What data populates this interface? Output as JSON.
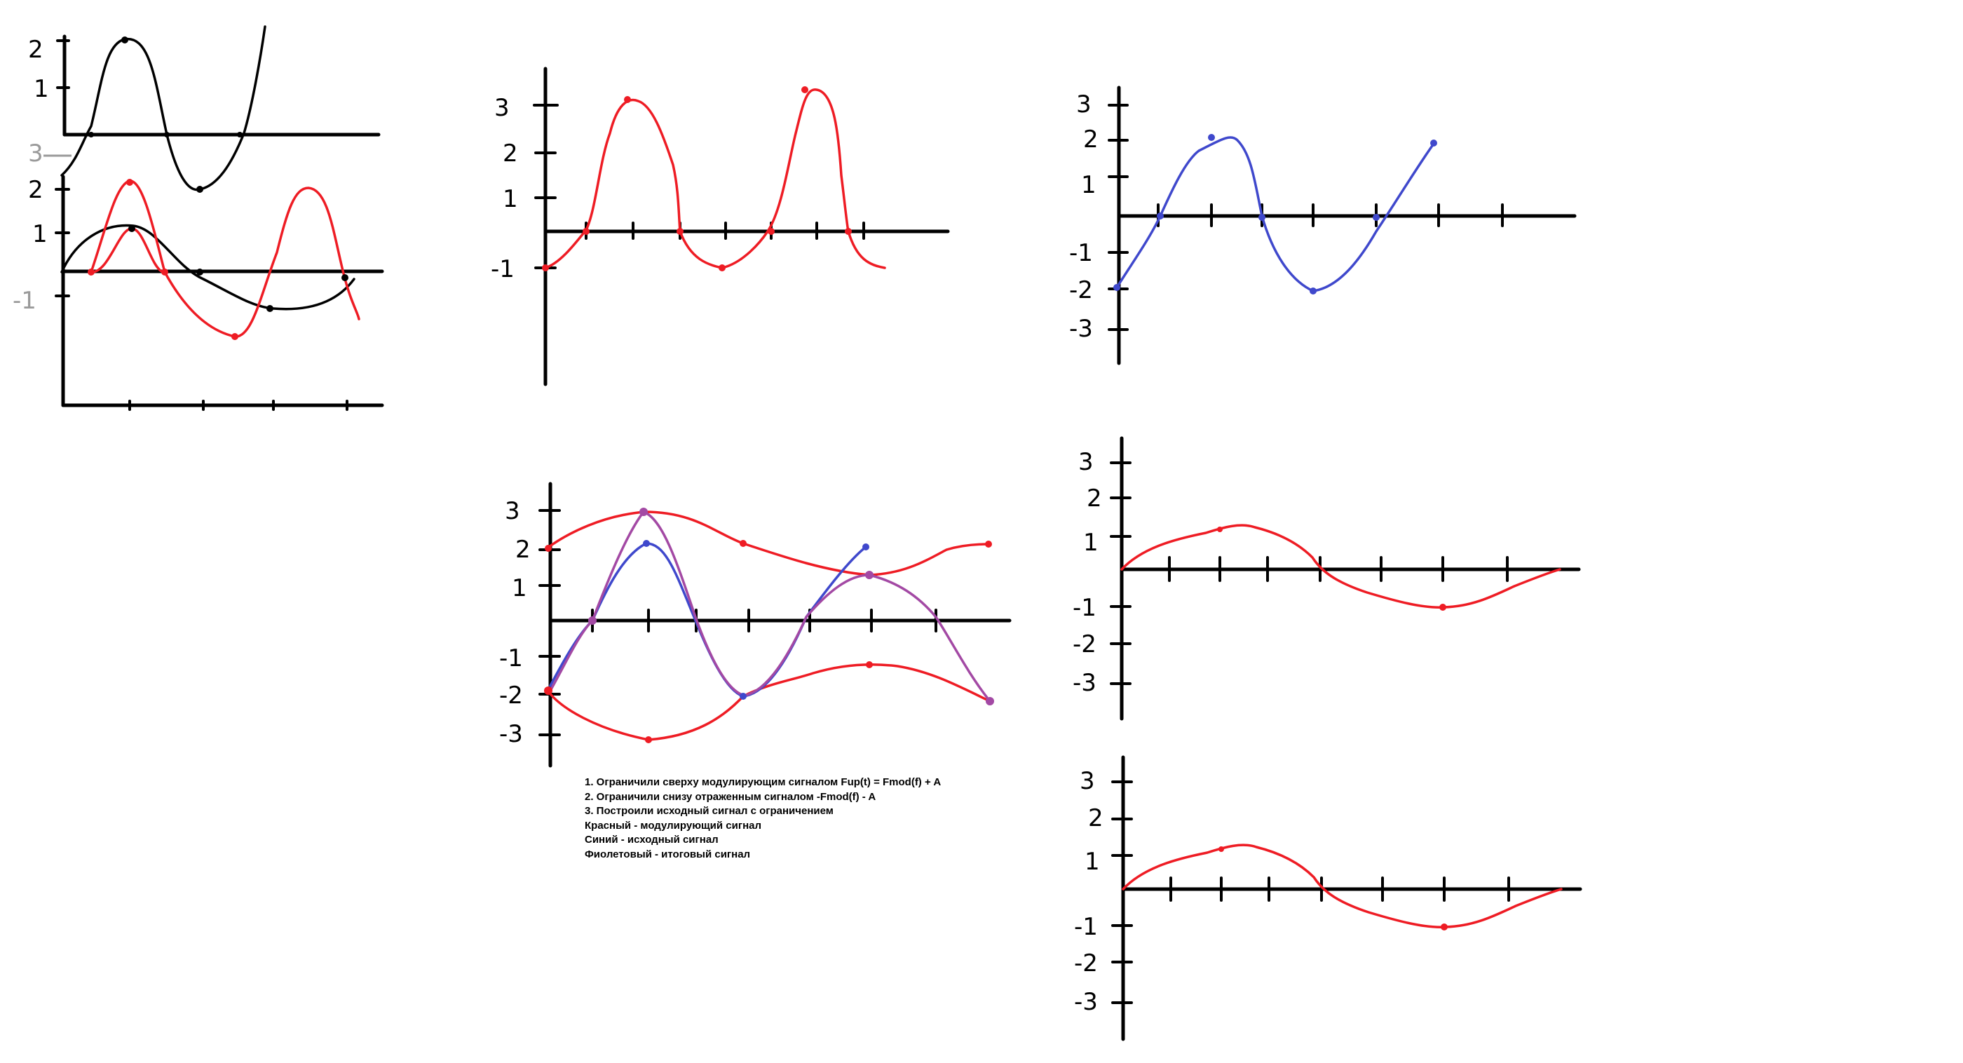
{
  "colors": {
    "black": "#000000",
    "red": "#ee1c24",
    "blue": "#3f48cc",
    "purple": "#a349a4"
  },
  "notes": [
    "1. Ограничили сверху модулирующим сигналом Fup(t) = Fmod(f) + A",
    "2. Ограничили снизу отраженным сигналом -Fmod(f) - A",
    "3. Построили исходный сигнал с ограничением",
    "Красный - модулирующий сигнал",
    "Синий - исходный сигнал",
    "Фиолетовый - итоговый сигнал"
  ],
  "sketches": {
    "top_left_a": {
      "labels": [
        "2",
        "1",
        "3"
      ]
    },
    "top_left_b": {
      "labels": [
        "2",
        "1",
        "-1"
      ]
    },
    "top_middle": {
      "labels": [
        "3",
        "2",
        "1",
        "-1"
      ]
    },
    "top_right": {
      "labels": [
        "3",
        "2",
        "1",
        "-1",
        "-2",
        "-3"
      ]
    },
    "bottom_middle": {
      "labels": [
        "3",
        "2",
        "1",
        "-1",
        "-2",
        "-3"
      ]
    },
    "bottom_right_a": {
      "labels": [
        "3",
        "2",
        "1",
        "-1",
        "-2",
        "-3"
      ]
    },
    "bottom_right_b": {
      "labels": [
        "3",
        "2",
        "1",
        "-1",
        "-2",
        "-3"
      ]
    }
  }
}
